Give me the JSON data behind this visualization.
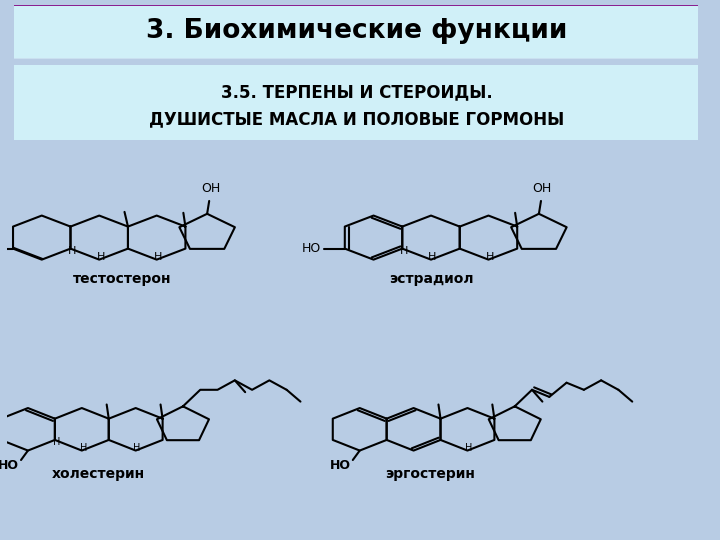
{
  "title": "3. Биохимические функции",
  "subtitle_line1": "3.5. ТЕРПЕНЫ И СТЕРОИДЫ.",
  "subtitle_line2": "ДУШИСТЫЕ МАСЛА И ПОЛОВЫЕ ГОРМОНЫ",
  "bg_color": "#b8cce4",
  "title_box_color": "#d0f0f8",
  "title_border_color": "#800080",
  "subtitle_box_color": "#d0f0f8",
  "subtitle_border_color": "#800080",
  "yellow_bg": "#f0e000",
  "label_testosterone": "тестостерон",
  "label_estradiol": "эстрадиол",
  "label_cholesterol": "холестерин",
  "label_ergosterol": "эргостерин",
  "title_fontsize": 19,
  "subtitle_fontsize": 12,
  "label_fontsize": 10
}
